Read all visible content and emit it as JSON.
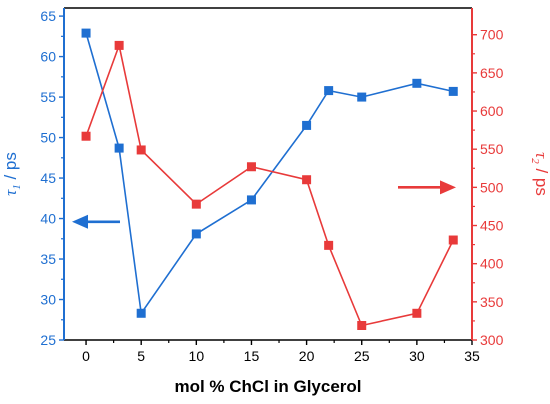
{
  "chart_data": {
    "type": "line",
    "xlabel": "mol % ChCl in Glycerol",
    "xlim": [
      -2,
      35
    ],
    "xticks": [
      0,
      5,
      10,
      15,
      20,
      25,
      30,
      35
    ],
    "y_left": {
      "label_symbol": "τ",
      "label_sub": "1",
      "label_unit": " / ps",
      "lim": [
        25,
        66
      ],
      "ticks": [
        25,
        30,
        35,
        40,
        45,
        50,
        55,
        60,
        65
      ],
      "color": "#1f6fd1"
    },
    "y_right": {
      "label_symbol": "τ",
      "label_sub": "2",
      "label_unit": " / ps",
      "lim": [
        300,
        735
      ],
      "ticks": [
        300,
        350,
        400,
        450,
        500,
        550,
        600,
        650,
        700
      ],
      "color": "#e83a3a"
    },
    "series": [
      {
        "axis": "left",
        "color": "#1f6fd1",
        "marker": "square",
        "x": [
          0,
          3,
          5,
          10,
          15,
          20,
          22,
          25,
          30,
          33.3
        ],
        "values": [
          62.9,
          48.7,
          28.3,
          38.1,
          42.3,
          51.5,
          55.8,
          55.0,
          56.7,
          55.7
        ]
      },
      {
        "axis": "right",
        "color": "#e83a3a",
        "marker": "square",
        "x": [
          0,
          3,
          5,
          10,
          15,
          20,
          22,
          25,
          30,
          33.3
        ],
        "values": [
          567,
          686,
          549,
          478,
          527,
          510,
          424,
          319,
          335,
          431
        ]
      }
    ],
    "arrows": [
      {
        "direction": "left",
        "color": "#1f6fd1"
      },
      {
        "direction": "right",
        "color": "#e83a3a"
      }
    ],
    "grid": false
  }
}
